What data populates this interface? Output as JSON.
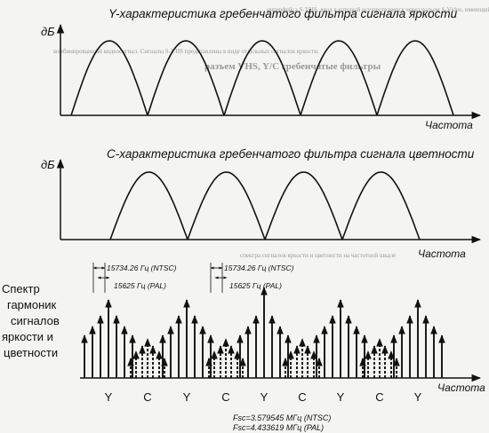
{
  "background_text": {
    "line1": "интерфейса S-VHS, вход в который осуществляется через разъем S-Video, имеющий также сигналы яркости",
    "line2": "комбинированный видеосигнал. Сигналы S-VHS представлены в виде отдельных сигналов яркости.",
    "line3": "разъем VHS, Y/C гребенчатые фильтры",
    "line4": "спектра сигналов яркости и цветности на частотной шкале"
  },
  "top_chart": {
    "title": "Y-характеристика гребенчатого фильтра сигнала яркости",
    "ylabel": "дБ",
    "xlabel": "Частота",
    "lobes": 5
  },
  "middle_chart": {
    "title": "С-характеристика гребенчатого фильтра сигнала цветности",
    "ylabel": "дБ",
    "xlabel": "Частота",
    "lobes": 4
  },
  "spectrum": {
    "label_lines": [
      "Спектр",
      "гармоник",
      "сигналов",
      "яркости и",
      "цветности"
    ],
    "annotation_left": {
      "ntsc": "15734.26 Гц (NTSC)",
      "pal": "15625 Гц (PAL)"
    },
    "annotation_right": {
      "ntsc": "15734.26 Гц (NTSC)",
      "pal": "15625 Гц (PAL)"
    },
    "xlabel": "Частота",
    "axis_labels": [
      "Y",
      "C",
      "Y",
      "C",
      "Y",
      "C",
      "Y",
      "C",
      "Y"
    ],
    "fsc_ntsc": "Fsc=3.579545 МГц (NTSC)",
    "fsc_pal": "Fsc=4.433619 МГц (PAL)",
    "legend_solid": "Y",
    "legend_dashed": "C"
  },
  "colors": {
    "ink": "#111111",
    "paper": "#f4f4f2",
    "ghost": "#9a9a9a"
  }
}
